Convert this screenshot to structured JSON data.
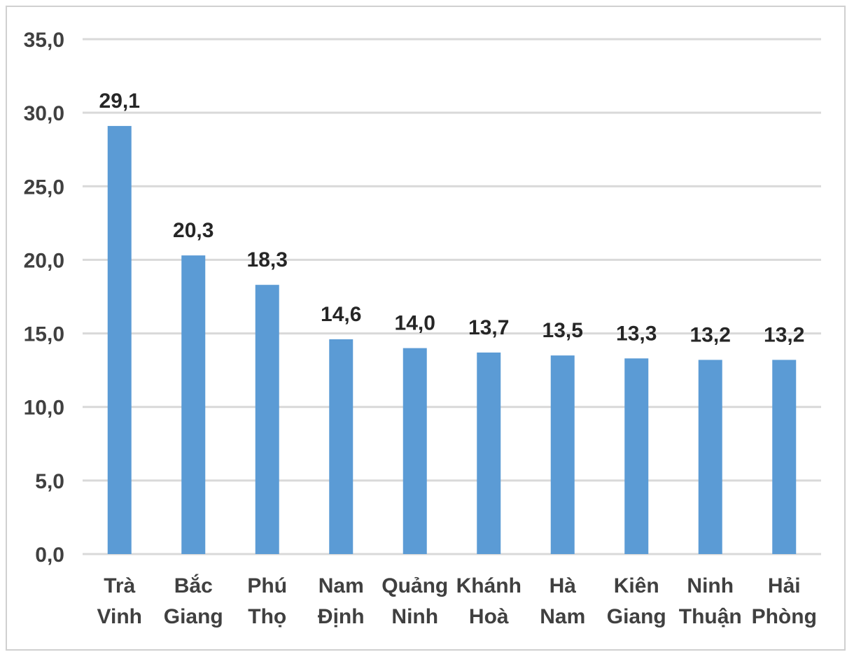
{
  "chart_data": {
    "type": "bar",
    "categories": [
      [
        "Trà",
        "Vinh"
      ],
      [
        "Bắc",
        "Giang"
      ],
      [
        "Phú",
        "Thọ"
      ],
      [
        "Nam",
        "Định"
      ],
      [
        "Quảng",
        "Ninh"
      ],
      [
        "Khánh",
        "Hoà"
      ],
      [
        "Hà",
        "Nam"
      ],
      [
        "Kiên",
        "Giang"
      ],
      [
        "Ninh",
        "Thuận"
      ],
      [
        "Hải",
        "Phòng"
      ]
    ],
    "values": [
      29.1,
      20.3,
      18.3,
      14.6,
      14.0,
      13.7,
      13.5,
      13.3,
      13.2,
      13.2
    ],
    "value_labels": [
      "29,1",
      "20,3",
      "18,3",
      "14,6",
      "14,0",
      "13,7",
      "13,5",
      "13,3",
      "13,2",
      "13,2"
    ],
    "y_ticks": [
      {
        "value": 0,
        "label": "0,0"
      },
      {
        "value": 5,
        "label": "5,0"
      },
      {
        "value": 10,
        "label": "10,0"
      },
      {
        "value": 15,
        "label": "15,0"
      },
      {
        "value": 20,
        "label": "20,0"
      },
      {
        "value": 25,
        "label": "25,0"
      },
      {
        "value": 30,
        "label": "30,0"
      },
      {
        "value": 35,
        "label": "35,0"
      }
    ],
    "ylim": [
      0,
      35
    ],
    "title": "",
    "xlabel": "",
    "ylabel": "",
    "grid": true,
    "legend": "none",
    "colors": {
      "bar": "#5b9bd5",
      "grid": "#d9d9d9",
      "text": "#404040",
      "value_text": "#262626"
    }
  }
}
